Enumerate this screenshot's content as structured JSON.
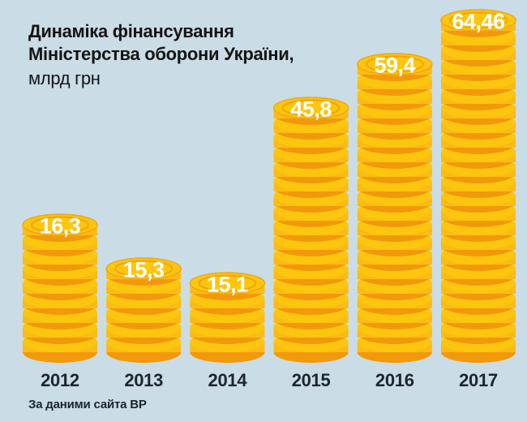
{
  "chart_data": {
    "type": "bar",
    "style": "coin-stack-pictogram",
    "title": "Динаміка фінансування Міністерства оборони України",
    "title_lines": [
      "Динаміка фінансування",
      "Міністерства оборони України,"
    ],
    "unit": "млрд грн",
    "categories": [
      "2012",
      "2013",
      "2014",
      "2015",
      "2016",
      "2017"
    ],
    "values": [
      16.3,
      15.3,
      15.1,
      45.8,
      59.4,
      64.46
    ],
    "value_labels": [
      "16,3",
      "15,3",
      "15,1",
      "45,8",
      "59,4",
      "64,46"
    ],
    "source": "За даними сайта ВР",
    "legend": "none",
    "axes": "none",
    "grid": false,
    "coins_per_stack": [
      9,
      6,
      5,
      17,
      20,
      23
    ],
    "colors": {
      "background": "#CADCE6",
      "coin_face": "#FCC60F",
      "coin_body": "#FBBB16",
      "coin_shadow": "#F2990B",
      "coin_ring": "#F2A70A",
      "value_text": "#FFFFFF",
      "year_text": "#1C262D",
      "title_text": "#141414"
    }
  }
}
